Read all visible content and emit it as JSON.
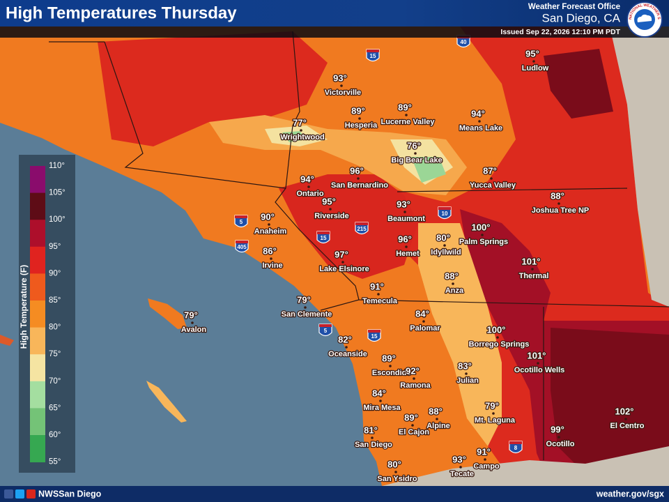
{
  "header": {
    "title": "High Temperatures Thursday",
    "office": "Weather Forecast Office",
    "location": "San Diego, CA",
    "issued": "Issued Sep 22, 2026 12:10 PM PDT",
    "logo_text": "NATIONAL WEATHER SERVICE"
  },
  "legend": {
    "title": "High Temperature (F)",
    "labels": [
      "110°",
      "105°",
      "100°",
      "95°",
      "90°",
      "85°",
      "80°",
      "75°",
      "70°",
      "65°",
      "60°",
      "55°"
    ],
    "colors": [
      "#8a0c6c",
      "#5e0c16",
      "#ad0f2b",
      "#e0231f",
      "#ef5a1d",
      "#f58c22",
      "#f8b65a",
      "#f5e4a2",
      "#a4dea0",
      "#74c377",
      "#36a851"
    ]
  },
  "cities": [
    {
      "name": "Victorville",
      "temp": "93°"
    },
    {
      "name": "Hesperia",
      "temp": "89°"
    },
    {
      "name": "Lucerne Valley",
      "temp": "89°"
    },
    {
      "name": "Means Lake",
      "temp": "94°"
    },
    {
      "name": "Ludlow",
      "temp": "95°"
    },
    {
      "name": "Wrightwood",
      "temp": "77°"
    },
    {
      "name": "Big Bear Lake",
      "temp": "76°"
    },
    {
      "name": "Yucca Valley",
      "temp": "87°"
    },
    {
      "name": "Joshua Tree NP",
      "temp": "88°"
    },
    {
      "name": "San Bernardino",
      "temp": "96°"
    },
    {
      "name": "Ontario",
      "temp": "94°"
    },
    {
      "name": "Riverside",
      "temp": "95°"
    },
    {
      "name": "Beaumont",
      "temp": "93°"
    },
    {
      "name": "Anaheim",
      "temp": "90°"
    },
    {
      "name": "Palm Springs",
      "temp": "100°"
    },
    {
      "name": "Hemet",
      "temp": "96°"
    },
    {
      "name": "Idyllwild",
      "temp": "80°"
    },
    {
      "name": "Irvine",
      "temp": "86°"
    },
    {
      "name": "Lake Elsinore",
      "temp": "97°"
    },
    {
      "name": "Thermal",
      "temp": "101°"
    },
    {
      "name": "Anza",
      "temp": "88°"
    },
    {
      "name": "Temecula",
      "temp": "91°"
    },
    {
      "name": "San Clemente",
      "temp": "79°"
    },
    {
      "name": "Avalon",
      "temp": "79°"
    },
    {
      "name": "Palomar",
      "temp": "84°"
    },
    {
      "name": "Borrego Springs",
      "temp": "100°"
    },
    {
      "name": "Oceanside",
      "temp": "82°"
    },
    {
      "name": "Escondido",
      "temp": "89°"
    },
    {
      "name": "Ocotillo Wells",
      "temp": "101°"
    },
    {
      "name": "Ramona",
      "temp": "92°"
    },
    {
      "name": "Julian",
      "temp": "83°"
    },
    {
      "name": "Mira Mesa",
      "temp": "84°"
    },
    {
      "name": "Mt. Laguna",
      "temp": "79°"
    },
    {
      "name": "Alpine",
      "temp": "88°"
    },
    {
      "name": "El Cajon",
      "temp": "89°"
    },
    {
      "name": "El Centro",
      "temp": "102°"
    },
    {
      "name": "San Diego",
      "temp": "81°"
    },
    {
      "name": "Ocotillo",
      "temp": "99°"
    },
    {
      "name": "Campo",
      "temp": "91°"
    },
    {
      "name": "Tecate",
      "temp": "93°"
    },
    {
      "name": "San Ysidro",
      "temp": "80°"
    }
  ],
  "highways": [
    "15",
    "40",
    "5",
    "405",
    "15",
    "215",
    "10",
    "5",
    "15",
    "8"
  ],
  "footer": {
    "social": "NWSSan Diego",
    "url": "weather.gov/sgx"
  }
}
